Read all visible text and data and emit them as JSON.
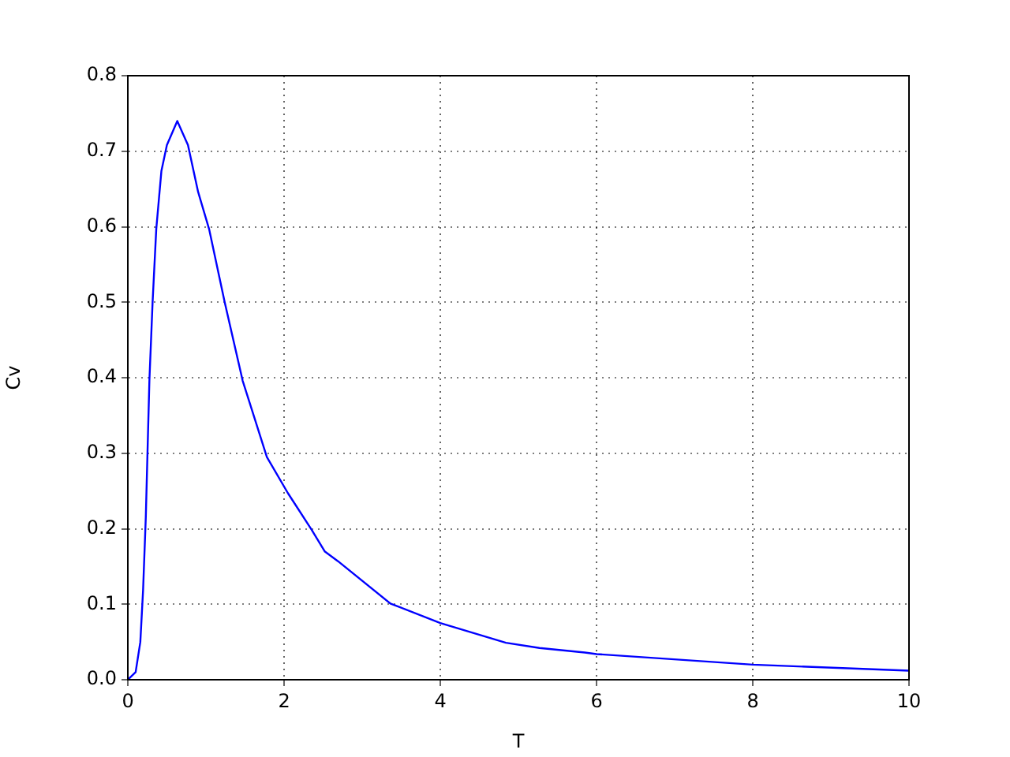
{
  "chart_data": {
    "type": "line",
    "xlabel": "T",
    "ylabel": "Cv",
    "x": [
      0,
      0.1,
      0.16,
      0.195,
      0.23,
      0.276,
      0.317,
      0.364,
      0.43,
      0.5,
      0.633,
      0.77,
      0.9,
      1.04,
      1.24,
      1.47,
      1.78,
      2.05,
      2.35,
      2.52,
      2.69,
      3.36,
      4,
      4.84,
      5.27,
      5.85,
      6,
      8,
      10
    ],
    "series": [
      {
        "color": "#0000ff",
        "values": [
          0,
          0.01,
          0.05,
          0.118,
          0.215,
          0.396,
          0.5,
          0.597,
          0.674,
          0.708,
          0.74,
          0.708,
          0.646,
          0.597,
          0.5,
          0.396,
          0.295,
          0.247,
          0.199,
          0.17,
          0.157,
          0.101,
          0.075,
          0.049,
          0.042,
          0.036,
          0.034,
          0.02,
          0.012
        ]
      }
    ],
    "xlim": [
      0,
      10
    ],
    "xticks": [
      0,
      2,
      4,
      6,
      8,
      10
    ],
    "ylim": [
      0,
      0.8
    ],
    "yticks": [
      {
        "value": 0,
        "label": "0.0"
      },
      {
        "value": 0.1,
        "label": "0.1"
      },
      {
        "value": 0.2,
        "label": "0.2"
      },
      {
        "value": 0.3,
        "label": "0.3"
      },
      {
        "value": 0.4,
        "label": "0.4"
      },
      {
        "value": 0.5,
        "label": "0.5"
      },
      {
        "value": 0.6,
        "label": "0.6"
      },
      {
        "value": 0.7,
        "label": "0.7"
      },
      {
        "value": 0.8,
        "label": "0.8"
      }
    ],
    "grid": true,
    "legend": false
  }
}
